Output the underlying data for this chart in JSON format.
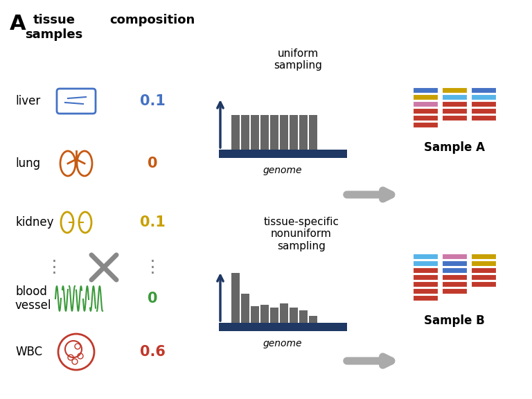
{
  "title_label": "A",
  "header_tissue": "tissue\nsamples",
  "header_composition": "composition",
  "tissue_labels": [
    "liver",
    "lung",
    "kidney"
  ],
  "tissue_colors": [
    "#4472C4",
    "#C65911",
    "#C8A000"
  ],
  "tissue_values": [
    "0.1",
    "0",
    "0.1"
  ],
  "tissue_value_colors": [
    "#4472C4",
    "#C65911",
    "#C8A000"
  ],
  "bottom_tissue_labels": [
    "blood\nvessel",
    "WBC"
  ],
  "bottom_tissue_colors": [
    "#3A9A3A",
    "#C0392B"
  ],
  "bottom_values": [
    "0",
    "0.6"
  ],
  "bottom_value_colors": [
    "#3A9A3A",
    "#C0392B"
  ],
  "uniform_label": "uniform\nsampling",
  "nonuniform_label": "tissue-specific\nnonuniform\nsampling",
  "genome_label": "genome",
  "sample_a_label": "Sample A",
  "sample_b_label": "Sample B",
  "bg_color": "#FFFFFF",
  "bar_color": "#666666",
  "genome_bar_color": "#1F3864",
  "arrow_color": "#AAAAAA",
  "sample_a_col1": [
    "#4472C4",
    "#C8A000",
    "#CC79A7",
    "#C0392B",
    "#C0392B",
    "#C0392B"
  ],
  "sample_a_col2": [
    "#C8A000",
    "#56B4E9",
    "#C0392B",
    "#C0392B",
    "#C0392B"
  ],
  "sample_a_col3": [
    "#4472C4",
    "#56B4E9",
    "#C0392B",
    "#C0392B",
    "#C0392B"
  ],
  "sample_b_col1": [
    "#56B4E9",
    "#56B4E9",
    "#C0392B",
    "#C0392B",
    "#C0392B",
    "#C0392B",
    "#C0392B"
  ],
  "sample_b_col2": [
    "#CC79A7",
    "#4472C4",
    "#4472C4",
    "#C0392B",
    "#C0392B",
    "#C0392B"
  ],
  "sample_b_col3": [
    "#C8A000",
    "#C8A000",
    "#C0392B",
    "#C0392B",
    "#C0392B"
  ]
}
